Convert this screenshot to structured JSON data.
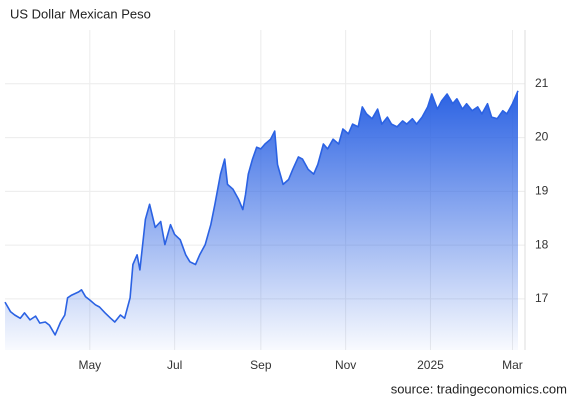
{
  "chart_data": {
    "type": "area",
    "title": "US Dollar Mexican Peso",
    "source": "source: tradingeconomics.com",
    "color": "#2b62e3",
    "grid": true,
    "xlim": [
      0,
      374
    ],
    "xticks": [
      {
        "value": 61,
        "label": "May"
      },
      {
        "value": 122,
        "label": "Jul"
      },
      {
        "value": 184,
        "label": "Sep"
      },
      {
        "value": 245,
        "label": "Nov"
      },
      {
        "value": 306,
        "label": "2025"
      },
      {
        "value": 365,
        "label": "Mar"
      }
    ],
    "ylim": [
      16.05,
      22.0
    ],
    "yticks": [
      17,
      18,
      19,
      20,
      21
    ],
    "x": [
      0,
      4,
      7,
      11,
      14,
      18,
      22,
      25,
      29,
      32,
      36,
      40,
      43,
      45,
      48,
      53,
      55,
      58,
      61,
      65,
      68,
      72,
      76,
      79,
      83,
      86,
      90,
      92,
      95,
      97,
      101,
      104,
      108,
      112,
      115,
      119,
      122,
      126,
      130,
      133,
      137,
      140,
      144,
      148,
      151,
      155,
      158,
      160,
      164,
      168,
      171,
      173,
      175,
      178,
      181,
      184,
      187,
      191,
      194,
      196,
      200,
      204,
      207,
      211,
      214,
      218,
      222,
      225,
      229,
      232,
      236,
      240,
      243,
      247,
      250,
      254,
      257,
      260,
      264,
      268,
      271,
      275,
      278,
      282,
      286,
      289,
      293,
      296,
      300,
      304,
      307,
      311,
      314,
      318,
      322,
      325,
      329,
      332,
      336,
      340,
      343,
      347,
      350,
      354,
      358,
      361,
      365,
      369
    ],
    "values": [
      16.94,
      16.76,
      16.7,
      16.64,
      16.74,
      16.61,
      16.68,
      16.55,
      16.57,
      16.51,
      16.33,
      16.57,
      16.7,
      17.02,
      17.07,
      17.13,
      17.17,
      17.04,
      16.98,
      16.89,
      16.85,
      16.74,
      16.64,
      16.57,
      16.7,
      16.64,
      17.02,
      17.64,
      17.82,
      17.54,
      18.48,
      18.76,
      18.33,
      18.44,
      18.01,
      18.38,
      18.2,
      18.1,
      17.82,
      17.69,
      17.64,
      17.82,
      18.01,
      18.38,
      18.76,
      19.32,
      19.6,
      19.13,
      19.04,
      18.85,
      18.66,
      18.94,
      19.32,
      19.6,
      19.82,
      19.79,
      19.88,
      19.97,
      20.12,
      19.5,
      19.13,
      19.22,
      19.41,
      19.64,
      19.6,
      19.41,
      19.32,
      19.5,
      19.88,
      19.79,
      19.97,
      19.88,
      20.16,
      20.07,
      20.25,
      20.2,
      20.57,
      20.44,
      20.35,
      20.53,
      20.25,
      20.38,
      20.25,
      20.2,
      20.31,
      20.25,
      20.35,
      20.25,
      20.38,
      20.57,
      20.81,
      20.53,
      20.68,
      20.81,
      20.63,
      20.72,
      20.53,
      20.63,
      20.5,
      20.57,
      20.44,
      20.63,
      20.38,
      20.35,
      20.5,
      20.44,
      20.63,
      20.87
    ]
  }
}
